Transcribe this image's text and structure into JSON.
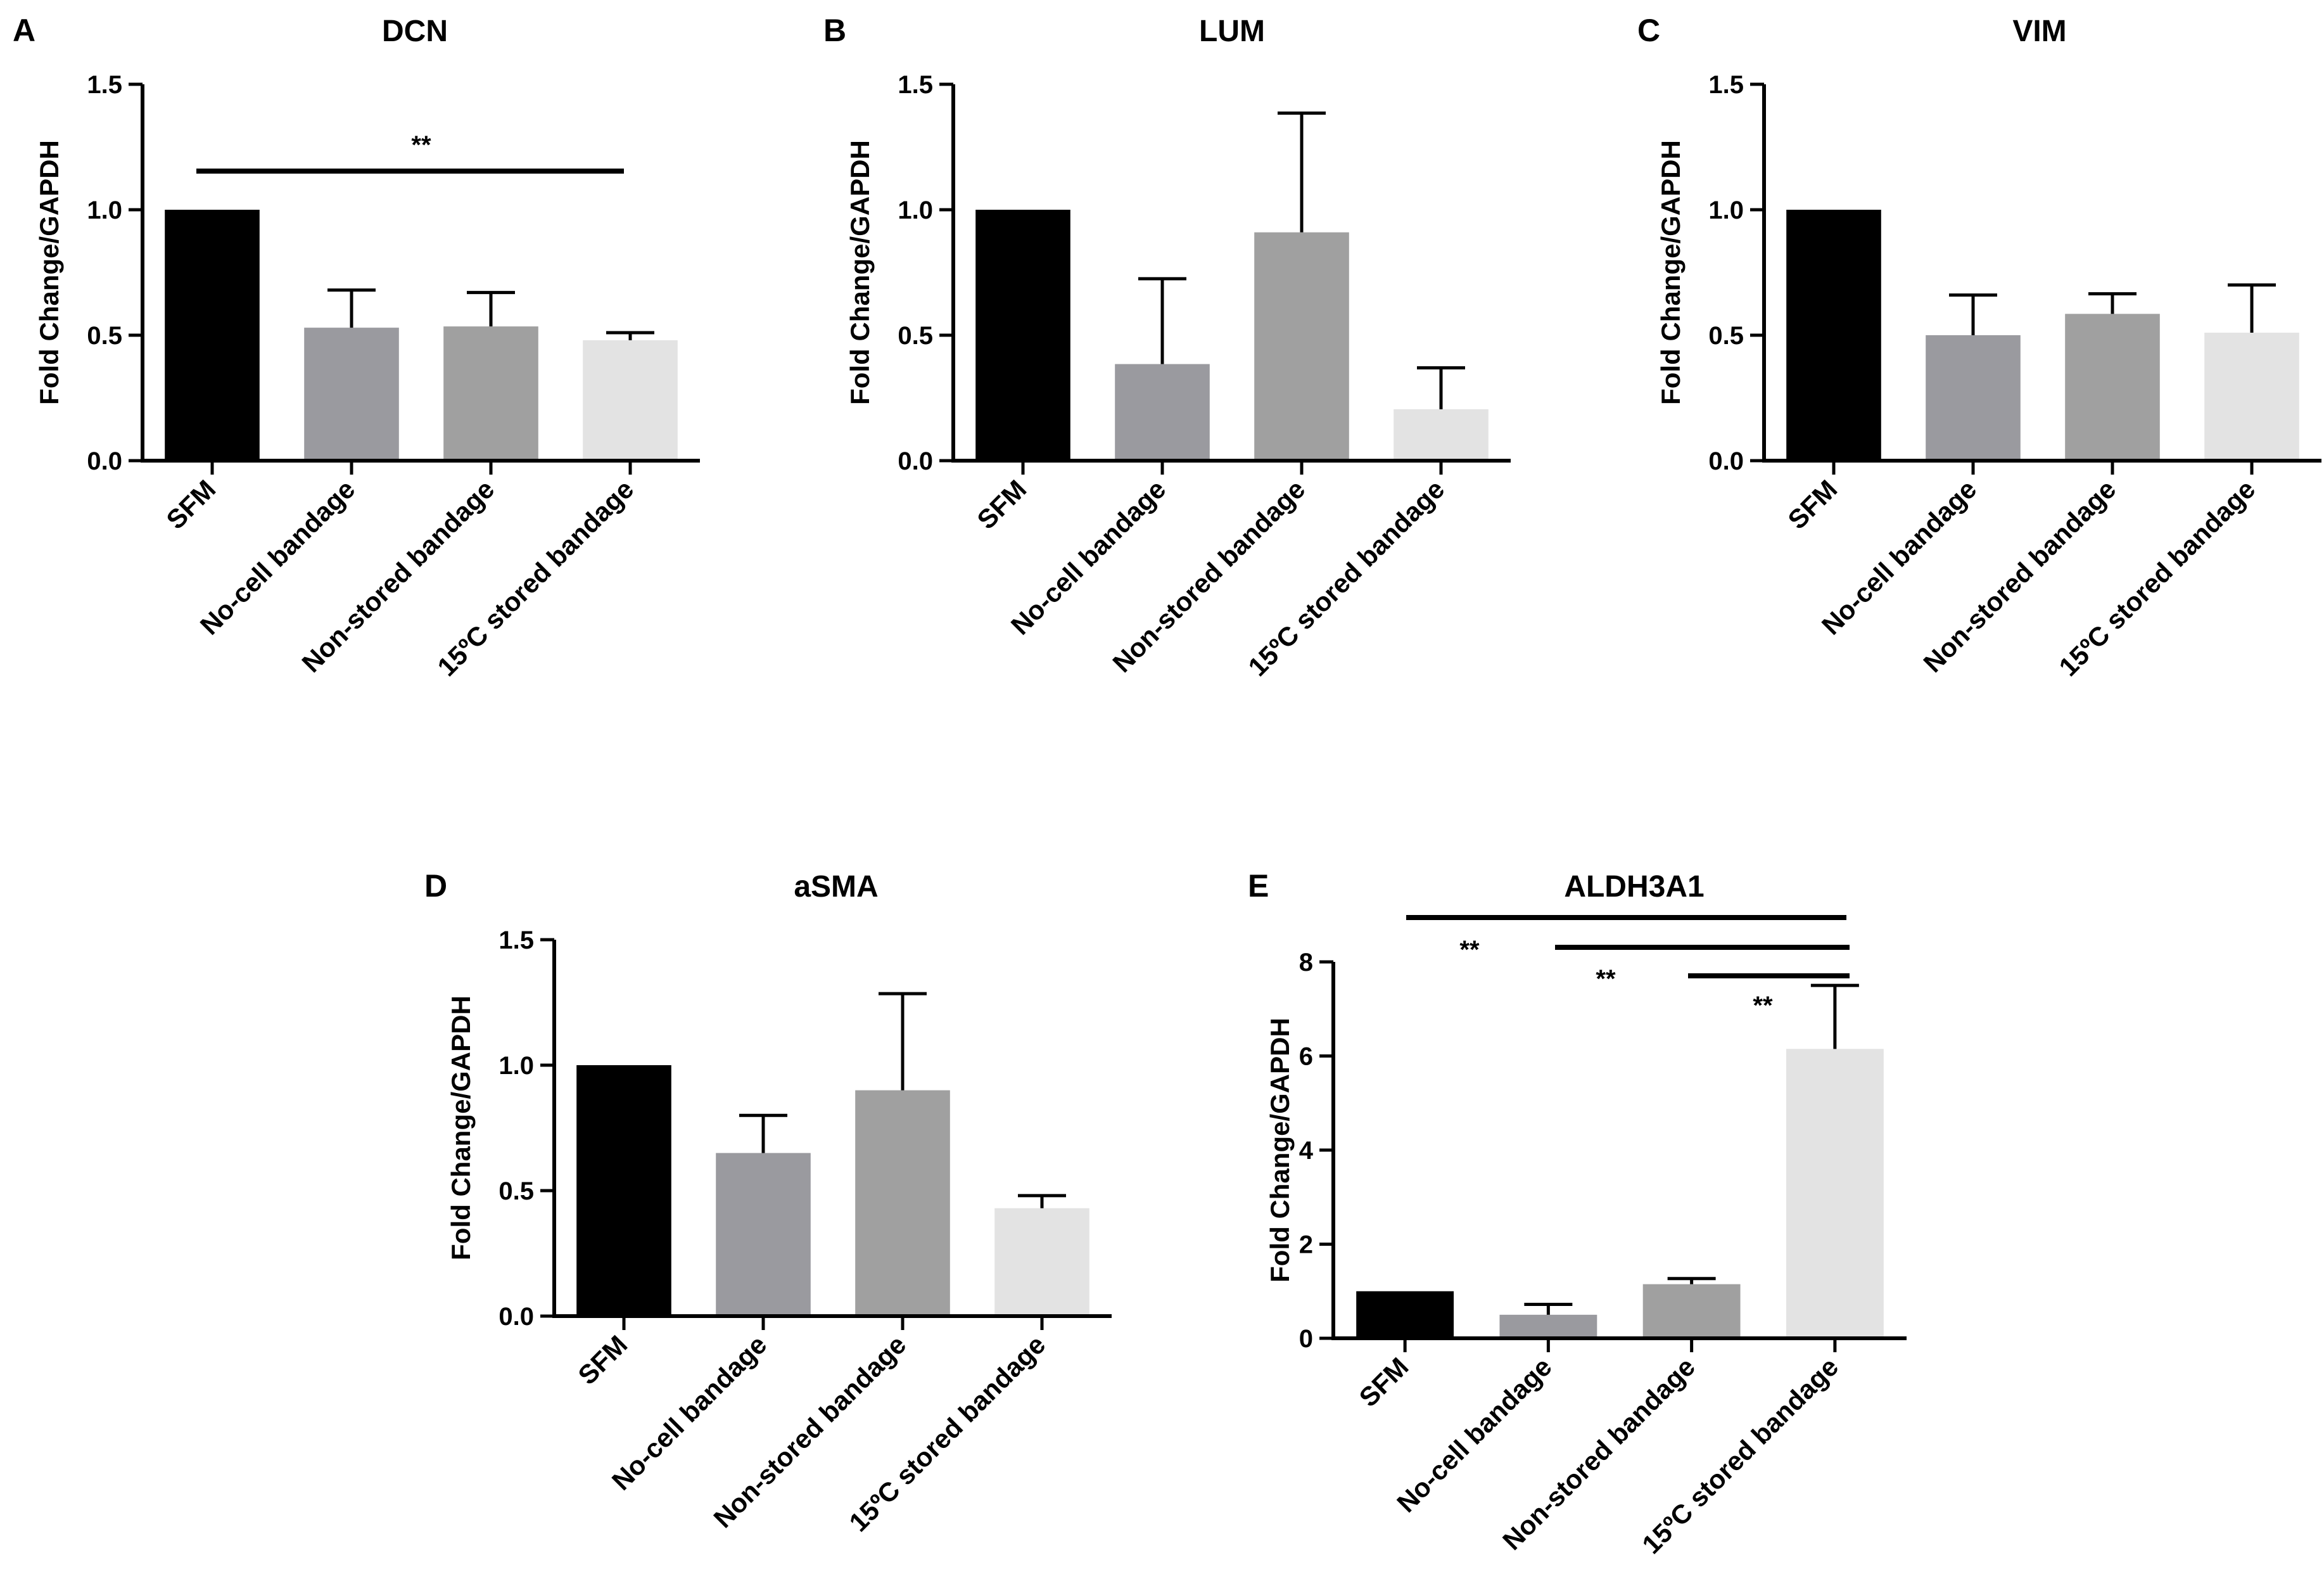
{
  "figure": {
    "categories": [
      "SFM",
      "No-cell bandage",
      "Non-stored bandage",
      "15ºC stored bandage"
    ],
    "bar_colors": [
      "#000000",
      "#9a9a9f",
      "#a0a0a0",
      "#e3e3e3"
    ],
    "ylabel": "Fold Change/GAPDH"
  },
  "chart_data": [
    {
      "panel": "A",
      "type": "bar",
      "title": "DCN",
      "categories": [
        "SFM",
        "No-cell bandage",
        "Non-stored bandage",
        "15ºC stored bandage"
      ],
      "values": [
        1.0,
        0.53,
        0.535,
        0.48
      ],
      "error": [
        0,
        0.15,
        0.135,
        0.03
      ],
      "ylabel": "Fold Change/GAPDH",
      "ylim": [
        0,
        1.5
      ],
      "yticks": [
        "0.0",
        "0.5",
        "1.0",
        "1.5"
      ],
      "significance": [
        {
          "from": 0,
          "to": 3,
          "label": "**"
        }
      ]
    },
    {
      "panel": "B",
      "type": "bar",
      "title": "LUM",
      "categories": [
        "SFM",
        "No-cell bandage",
        "Non-stored bandage",
        "15ºC stored bandage"
      ],
      "values": [
        1.0,
        0.385,
        0.91,
        0.205
      ],
      "error": [
        0,
        0.34,
        0.475,
        0.165
      ],
      "ylabel": "Fold Change/GAPDH",
      "ylim": [
        0,
        1.5
      ],
      "yticks": [
        "0.0",
        "0.5",
        "1.0",
        "1.5"
      ],
      "significance": []
    },
    {
      "panel": "C",
      "type": "bar",
      "title": "VIM",
      "categories": [
        "SFM",
        "No-cell bandage",
        "Non-stored bandage",
        "15ºC stored bandage"
      ],
      "values": [
        1.0,
        0.5,
        0.585,
        0.51
      ],
      "error": [
        0,
        0.16,
        0.08,
        0.19
      ],
      "ylabel": "Fold Change/GAPDH",
      "ylim": [
        0,
        1.5
      ],
      "yticks": [
        "0.0",
        "0.5",
        "1.0",
        "1.5"
      ],
      "significance": []
    },
    {
      "panel": "D",
      "type": "bar",
      "title": "aSMA",
      "categories": [
        "SFM",
        "No-cell bandage",
        "Non-stored bandage",
        "15ºC stored bandage"
      ],
      "values": [
        1.0,
        0.65,
        0.9,
        0.43
      ],
      "error": [
        0,
        0.15,
        0.385,
        0.05
      ],
      "ylabel": "Fold Change/GAPDH",
      "ylim": [
        0,
        1.5
      ],
      "yticks": [
        "0.0",
        "0.5",
        "1.0",
        "1.5"
      ],
      "significance": []
    },
    {
      "panel": "E",
      "type": "bar",
      "title": "ALDH3A1",
      "categories": [
        "SFM",
        "No-cell bandage",
        "Non-stored bandage",
        "15ºC stored bandage"
      ],
      "values": [
        1.0,
        0.5,
        1.15,
        6.15
      ],
      "error": [
        0,
        0.22,
        0.12,
        1.35
      ],
      "ylabel": "Fold Change/GAPDH",
      "ylim": [
        0,
        8
      ],
      "yticks": [
        "0",
        "2",
        "4",
        "6",
        "8"
      ],
      "significance": [
        {
          "from": 0,
          "to": 3,
          "label": "**"
        },
        {
          "from": 1,
          "to": 3,
          "label": "**"
        },
        {
          "from": 2,
          "to": 3,
          "label": "**"
        }
      ]
    }
  ]
}
